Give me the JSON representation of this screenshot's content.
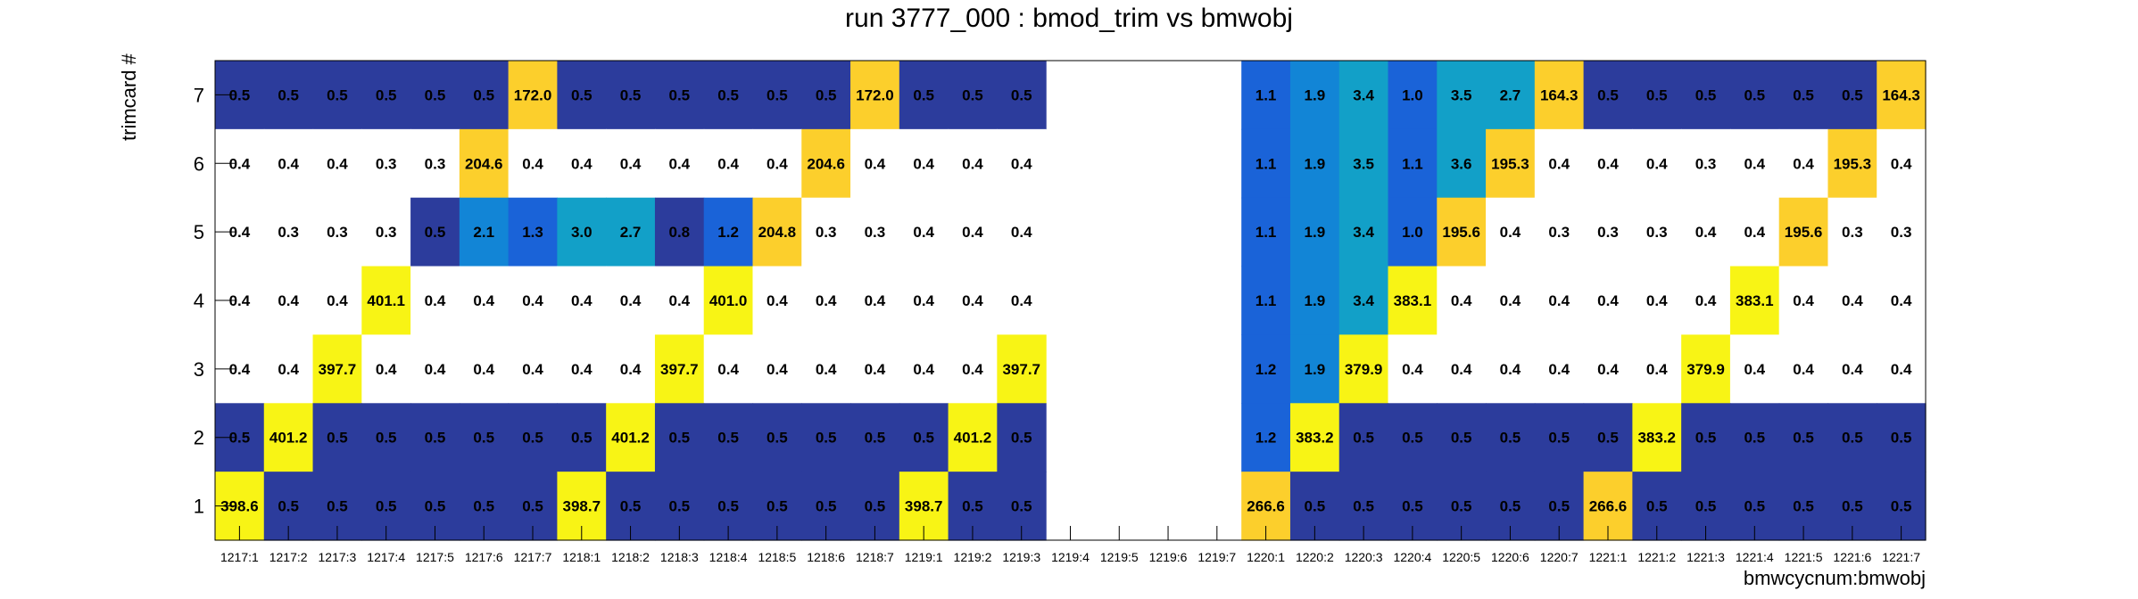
{
  "chart_data": {
    "type": "heatmap",
    "title": "run 3777_000 : bmod_trim vs bmwobj",
    "xlabel": "bmwcycnum:bmwobj",
    "ylabel": "trimcard #",
    "x_categories": [
      "1217:1",
      "1217:2",
      "1217:3",
      "1217:4",
      "1217:5",
      "1217:6",
      "1217:7",
      "1218:1",
      "1218:2",
      "1218:3",
      "1218:4",
      "1218:5",
      "1218:6",
      "1218:7",
      "1219:1",
      "1219:2",
      "1219:3",
      "1219:4",
      "1219:5",
      "1219:6",
      "1219:7",
      "1220:1",
      "1220:2",
      "1220:3",
      "1220:4",
      "1220:5",
      "1220:6",
      "1220:7",
      "1221:1",
      "1221:2",
      "1221:3",
      "1221:4",
      "1221:5",
      "1221:6",
      "1221:7"
    ],
    "y_categories": [
      "1",
      "2",
      "3",
      "4",
      "5",
      "6",
      "7"
    ],
    "rows": [
      {
        "y": "7",
        "values": [
          0.5,
          0.5,
          0.5,
          0.5,
          0.5,
          0.5,
          172.0,
          0.5,
          0.5,
          0.5,
          0.5,
          0.5,
          0.5,
          172.0,
          0.5,
          0.5,
          0.5,
          null,
          null,
          null,
          null,
          1.1,
          1.9,
          3.4,
          1.0,
          3.5,
          2.7,
          164.3,
          0.5,
          0.5,
          0.5,
          0.5,
          0.5,
          0.5,
          164.3
        ]
      },
      {
        "y": "6",
        "values": [
          0.4,
          0.4,
          0.4,
          0.3,
          0.3,
          204.6,
          0.4,
          0.4,
          0.4,
          0.4,
          0.4,
          0.4,
          204.6,
          0.4,
          0.4,
          0.4,
          0.4,
          null,
          null,
          null,
          null,
          1.1,
          1.9,
          3.5,
          1.1,
          3.6,
          195.3,
          0.4,
          0.4,
          0.4,
          0.3,
          0.4,
          0.4,
          195.3,
          0.4
        ]
      },
      {
        "y": "5",
        "values": [
          0.4,
          0.3,
          0.3,
          0.3,
          0.5,
          2.1,
          1.3,
          3.0,
          2.7,
          0.8,
          1.2,
          204.8,
          0.3,
          0.3,
          0.4,
          0.4,
          0.4,
          null,
          null,
          null,
          null,
          1.1,
          1.9,
          3.4,
          1.0,
          195.6,
          0.4,
          0.3,
          0.3,
          0.3,
          0.4,
          0.4,
          195.6,
          0.3,
          0.3
        ]
      },
      {
        "y": "4",
        "values": [
          0.4,
          0.4,
          0.4,
          401.1,
          0.4,
          0.4,
          0.4,
          0.4,
          0.4,
          0.4,
          401.0,
          0.4,
          0.4,
          0.4,
          0.4,
          0.4,
          0.4,
          null,
          null,
          null,
          null,
          1.1,
          1.9,
          3.4,
          383.1,
          0.4,
          0.4,
          0.4,
          0.4,
          0.4,
          0.4,
          383.1,
          0.4,
          0.4,
          0.4
        ]
      },
      {
        "y": "3",
        "values": [
          0.4,
          0.4,
          397.7,
          0.4,
          0.4,
          0.4,
          0.4,
          0.4,
          0.4,
          397.7,
          0.4,
          0.4,
          0.4,
          0.4,
          0.4,
          0.4,
          397.7,
          null,
          null,
          null,
          null,
          1.2,
          1.9,
          379.9,
          0.4,
          0.4,
          0.4,
          0.4,
          0.4,
          0.4,
          379.9,
          0.4,
          0.4,
          0.4,
          0.4
        ]
      },
      {
        "y": "2",
        "values": [
          0.5,
          401.2,
          0.5,
          0.5,
          0.5,
          0.5,
          0.5,
          0.5,
          401.2,
          0.5,
          0.5,
          0.5,
          0.5,
          0.5,
          0.5,
          401.2,
          0.5,
          null,
          null,
          null,
          null,
          1.2,
          383.2,
          0.5,
          0.5,
          0.5,
          0.5,
          0.5,
          0.5,
          383.2,
          0.5,
          0.5,
          0.5,
          0.5,
          0.5
        ]
      },
      {
        "y": "1",
        "values": [
          398.6,
          0.5,
          0.5,
          0.5,
          0.5,
          0.5,
          0.5,
          398.7,
          0.5,
          0.5,
          0.5,
          0.5,
          0.5,
          0.5,
          398.7,
          0.5,
          0.5,
          null,
          null,
          null,
          null,
          266.6,
          0.5,
          0.5,
          0.5,
          0.5,
          0.5,
          0.5,
          266.6,
          0.5,
          0.5,
          0.5,
          0.5,
          0.5,
          0.5
        ]
      }
    ],
    "colors": {
      "low": "#2c3c9c",
      "below_min": "#ffffff",
      "mid1": "#1a63d8",
      "mid2": "#1285d6",
      "mid3": "#12a0c8",
      "high_a": "#fccf2c",
      "high_b": "#f8f415"
    }
  }
}
